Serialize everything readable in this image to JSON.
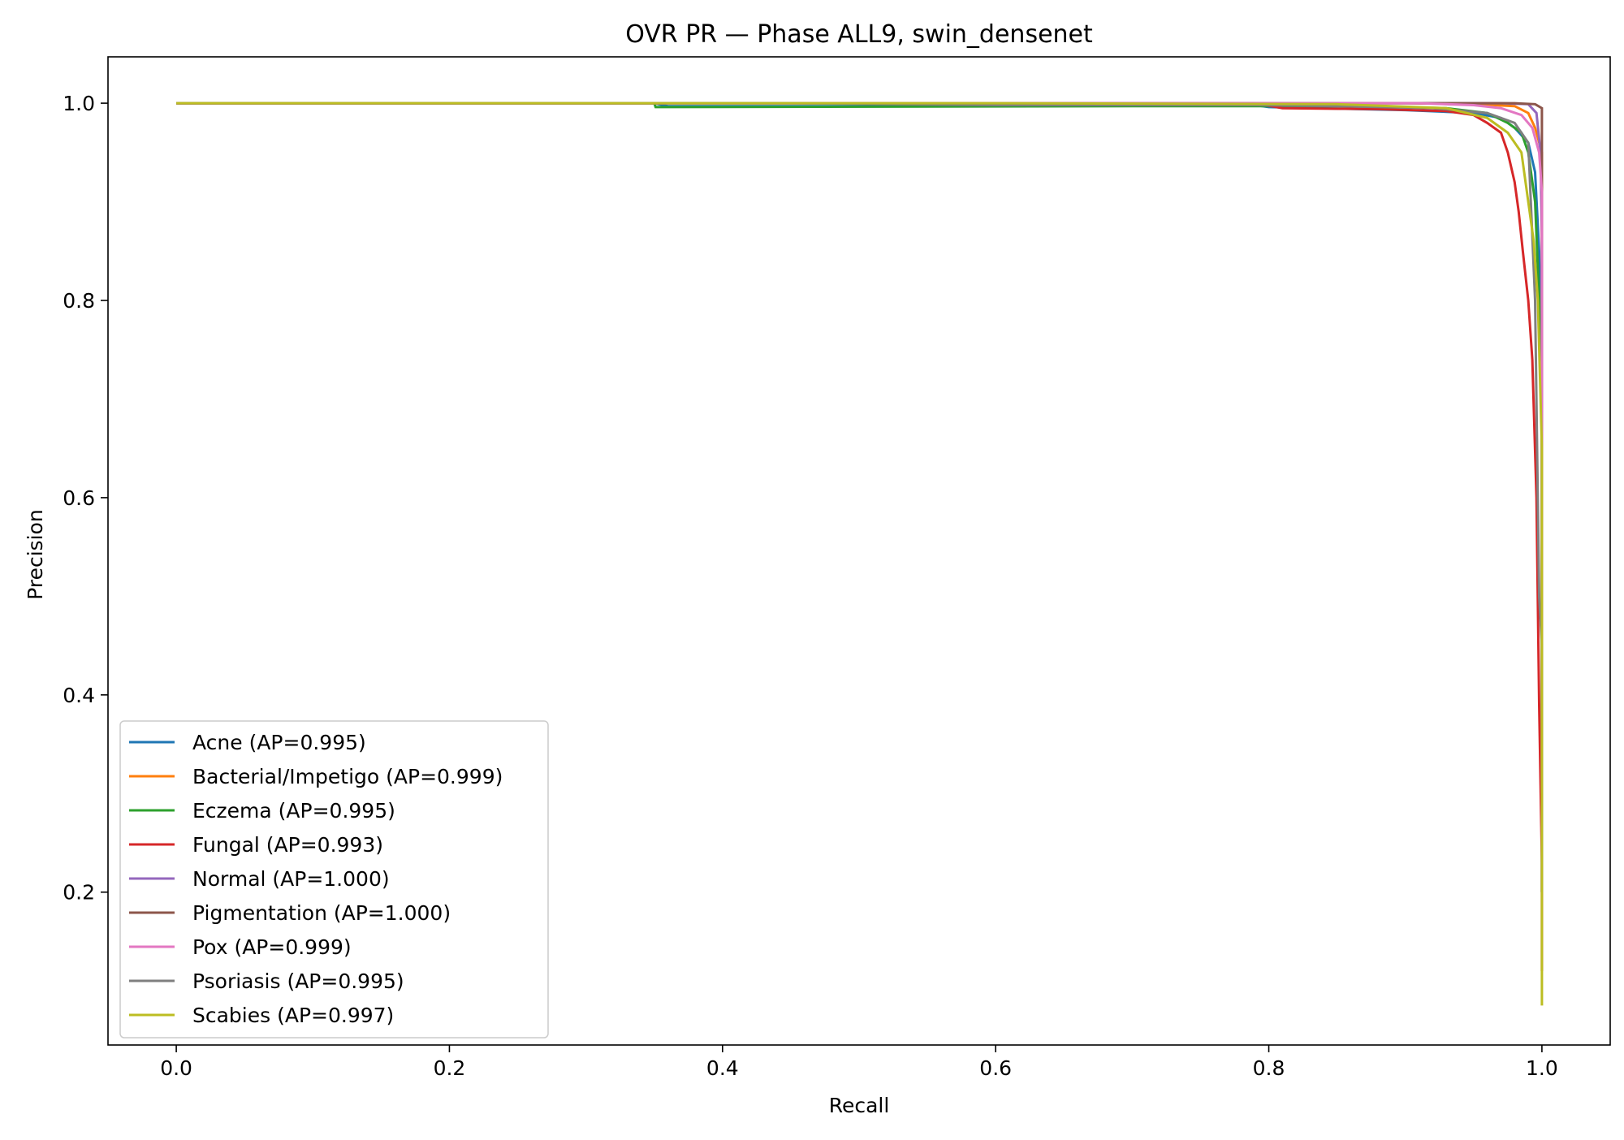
{
  "chart_data": {
    "type": "line",
    "title": "OVR PR — Phase ALL9, swin_densenet",
    "xlabel": "Recall",
    "ylabel": "Precision",
    "xlim": [
      -0.05,
      1.05
    ],
    "ylim": [
      0.045,
      1.047
    ],
    "xticks": [
      0.0,
      0.2,
      0.4,
      0.6,
      0.8,
      1.0
    ],
    "xtick_labels": [
      "0.0",
      "0.2",
      "0.4",
      "0.6",
      "0.8",
      "1.0"
    ],
    "yticks": [
      0.2,
      0.4,
      0.6,
      0.8,
      1.0
    ],
    "ytick_labels": [
      "0.2",
      "0.4",
      "0.6",
      "0.8",
      "1.0"
    ],
    "grid": false,
    "legend_position": "lower-left",
    "series": [
      {
        "name": "Acne (AP=0.995)",
        "color": "#1f77b4",
        "x": [
          0.0,
          0.35,
          0.36,
          0.6,
          0.79,
          0.8,
          0.9,
          0.95,
          0.97,
          0.98,
          0.99,
          0.995,
          0.998,
          1.0,
          1.0
        ],
        "y": [
          1.0,
          1.0,
          0.997,
          0.997,
          0.998,
          0.996,
          0.993,
          0.99,
          0.985,
          0.975,
          0.96,
          0.93,
          0.85,
          0.75,
          0.2
        ]
      },
      {
        "name": "Bacterial/Impetigo (AP=0.999)",
        "color": "#ff7f0e",
        "x": [
          0.0,
          0.9,
          0.95,
          0.98,
          0.99,
          0.995,
          1.0,
          1.0
        ],
        "y": [
          1.0,
          1.0,
          0.999,
          0.997,
          0.99,
          0.975,
          0.95,
          0.35
        ]
      },
      {
        "name": "Eczema (AP=0.995)",
        "color": "#2ca02c",
        "x": [
          0.0,
          0.35,
          0.351,
          0.7,
          0.85,
          0.93,
          0.96,
          0.975,
          0.985,
          0.99,
          0.995,
          0.998,
          1.0,
          1.0
        ],
        "y": [
          1.0,
          1.0,
          0.996,
          0.997,
          0.997,
          0.995,
          0.99,
          0.98,
          0.97,
          0.95,
          0.9,
          0.8,
          0.7,
          0.3
        ]
      },
      {
        "name": "Fungal (AP=0.993)",
        "color": "#d62728",
        "x": [
          0.0,
          0.79,
          0.81,
          0.88,
          0.93,
          0.95,
          0.96,
          0.97,
          0.975,
          0.98,
          0.983,
          0.986,
          0.99,
          0.993,
          0.996,
          0.998,
          1.0,
          1.0
        ],
        "y": [
          1.0,
          1.0,
          0.995,
          0.994,
          0.992,
          0.988,
          0.98,
          0.97,
          0.95,
          0.92,
          0.89,
          0.85,
          0.8,
          0.74,
          0.6,
          0.39,
          0.23,
          0.12
        ]
      },
      {
        "name": "Normal (AP=1.000)",
        "color": "#9467bd",
        "x": [
          0.0,
          0.97,
          0.99,
          0.996,
          0.999,
          1.0,
          1.0
        ],
        "y": [
          1.0,
          1.0,
          0.999,
          0.99,
          0.95,
          0.86,
          0.3
        ]
      },
      {
        "name": "Pigmentation (AP=1.000)",
        "color": "#8c564b",
        "x": [
          0.0,
          0.98,
          0.995,
          1.0,
          1.0
        ],
        "y": [
          1.0,
          1.0,
          0.999,
          0.995,
          0.35
        ]
      },
      {
        "name": "Pox (AP=0.999)",
        "color": "#e377c2",
        "x": [
          0.0,
          0.91,
          0.95,
          0.97,
          0.985,
          0.993,
          0.998,
          1.0,
          1.0
        ],
        "y": [
          1.0,
          1.0,
          0.998,
          0.995,
          0.988,
          0.975,
          0.95,
          0.91,
          0.2
        ]
      },
      {
        "name": "Psoriasis (AP=0.995)",
        "color": "#7f7f7f",
        "x": [
          0.0,
          0.45,
          0.6,
          0.79,
          0.85,
          0.92,
          0.96,
          0.98,
          0.99,
          0.995,
          0.998,
          1.0,
          1.0
        ],
        "y": [
          1.0,
          1.0,
          0.998,
          0.998,
          0.997,
          0.995,
          0.99,
          0.98,
          0.96,
          0.8,
          0.5,
          0.45,
          0.2
        ]
      },
      {
        "name": "Scabies (AP=0.997)",
        "color": "#bcbd22",
        "x": [
          0.0,
          0.6,
          0.85,
          0.93,
          0.96,
          0.975,
          0.985,
          0.99,
          0.994,
          0.997,
          1.0,
          1.0
        ],
        "y": [
          1.0,
          1.0,
          0.999,
          0.995,
          0.985,
          0.97,
          0.95,
          0.9,
          0.86,
          0.8,
          0.65,
          0.085
        ]
      }
    ]
  }
}
